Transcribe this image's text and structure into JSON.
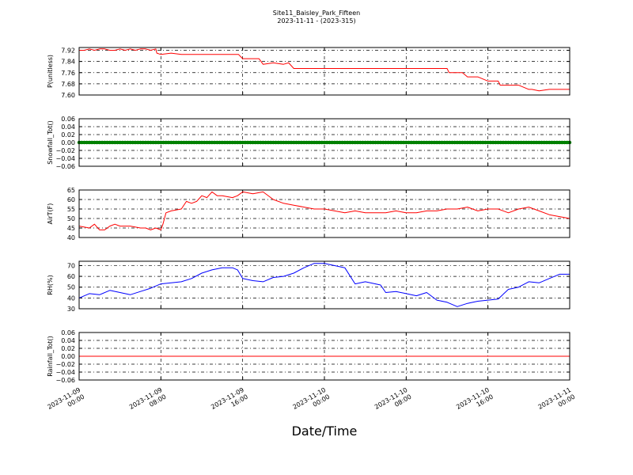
{
  "chart_data": {
    "type": "line",
    "title": "Site11_Baisley_Park_Fifteen",
    "subtitle": "2023-11-11 - (2023-315)",
    "xlabel": "Date/Time",
    "x_range": [
      "2023-11-09 00:00",
      "2023-11-11 00:00"
    ],
    "x_ticks": [
      {
        "l1": "2023-11-09",
        "l2": "00:00"
      },
      {
        "l1": "2023-11-09",
        "l2": "08:00"
      },
      {
        "l1": "2023-11-09",
        "l2": "16:00"
      },
      {
        "l1": "2023-11-10",
        "l2": "00:00"
      },
      {
        "l1": "2023-11-10",
        "l2": "08:00"
      },
      {
        "l1": "2023-11-10",
        "l2": "16:00"
      },
      {
        "l1": "2023-11-11",
        "l2": "00:00"
      }
    ],
    "grid": true,
    "panels": [
      {
        "ylabel": "P(unitless)",
        "ylim": [
          7.6,
          7.94
        ],
        "yticks": [
          "7.60",
          "7.68",
          "7.76",
          "7.84",
          "7.92"
        ],
        "ytick_values": [
          7.6,
          7.68,
          7.76,
          7.84,
          7.92
        ],
        "color": "#ff0000",
        "style": "line",
        "x_hours": [
          0,
          0.5,
          1,
          1.5,
          2,
          2.5,
          3,
          3.5,
          4,
          4.5,
          5,
          5.5,
          6,
          6.5,
          7,
          7.5,
          7.6,
          8,
          9,
          10,
          11,
          12,
          13,
          14,
          15,
          15.6,
          16,
          17,
          17.6,
          18,
          19,
          20,
          20.5,
          21,
          22,
          23,
          24,
          25,
          26,
          27,
          28,
          29,
          30,
          31,
          32,
          33,
          34,
          35,
          36,
          36.2,
          37,
          37.5,
          38,
          38.5,
          39,
          40,
          41,
          41.2,
          42,
          43,
          44,
          44.3,
          45,
          46,
          47,
          48
        ],
        "values": [
          7.92,
          7.92,
          7.93,
          7.92,
          7.93,
          7.93,
          7.92,
          7.92,
          7.93,
          7.92,
          7.93,
          7.92,
          7.93,
          7.93,
          7.92,
          7.93,
          7.9,
          7.89,
          7.9,
          7.89,
          7.89,
          7.89,
          7.89,
          7.89,
          7.89,
          7.89,
          7.86,
          7.86,
          7.86,
          7.82,
          7.83,
          7.82,
          7.83,
          7.79,
          7.79,
          7.79,
          7.79,
          7.79,
          7.79,
          7.79,
          7.79,
          7.79,
          7.79,
          7.79,
          7.79,
          7.79,
          7.79,
          7.79,
          7.79,
          7.76,
          7.76,
          7.76,
          7.73,
          7.73,
          7.73,
          7.7,
          7.7,
          7.67,
          7.67,
          7.67,
          7.64,
          7.64,
          7.63,
          7.64,
          7.64,
          7.64
        ]
      },
      {
        "ylabel": "Snowfall_Tot()",
        "ylim": [
          -0.06,
          0.06
        ],
        "yticks": [
          "−0.06",
          "−0.04",
          "−0.02",
          "0.00",
          "0.02",
          "0.04",
          "0.06"
        ],
        "ytick_values": [
          -0.06,
          -0.04,
          -0.02,
          0.0,
          0.02,
          0.04,
          0.06
        ],
        "color": "#008000",
        "style": "markers",
        "x_hours": [
          0,
          48
        ],
        "values": [
          0.0,
          0.0
        ]
      },
      {
        "ylabel": "AirT(F)",
        "ylim": [
          40,
          65
        ],
        "yticks": [
          "40",
          "45",
          "50",
          "55",
          "60",
          "65"
        ],
        "ytick_values": [
          40,
          45,
          50,
          55,
          60,
          65
        ],
        "color": "#ff0000",
        "style": "line",
        "x_hours": [
          0,
          1,
          1.5,
          2,
          2.5,
          3,
          3.5,
          4,
          5,
          6,
          6.5,
          7,
          7.5,
          8,
          8.2,
          8.5,
          9,
          10,
          10.5,
          11,
          11.5,
          12,
          12.5,
          13,
          13.5,
          14,
          15,
          15.5,
          16,
          17,
          18,
          19,
          20,
          21,
          22,
          23,
          24,
          25,
          26,
          27,
          28,
          29,
          30,
          31,
          32,
          33,
          34,
          35,
          36,
          37,
          38,
          39,
          40,
          41,
          42,
          43,
          44,
          45,
          46,
          47,
          48
        ],
        "values": [
          46,
          45,
          47,
          44,
          44,
          46,
          47,
          46,
          46,
          45,
          45,
          44,
          45,
          44,
          47,
          53,
          54,
          55,
          59,
          58,
          59,
          62,
          61,
          64,
          62,
          62,
          61,
          62,
          64,
          63,
          64,
          60,
          58,
          57,
          56,
          55,
          55,
          54,
          53,
          54,
          53,
          53,
          53,
          54,
          53,
          53,
          54,
          54,
          55,
          55,
          56,
          54,
          55,
          55,
          53,
          55,
          56,
          54,
          52,
          51,
          50
        ]
      },
      {
        "ylabel": "RH(%)",
        "ylim": [
          30,
          74
        ],
        "yticks": [
          "30",
          "40",
          "50",
          "60",
          "70"
        ],
        "ytick_values": [
          30,
          40,
          50,
          60,
          70
        ],
        "color": "#0000ff",
        "style": "line",
        "x_hours": [
          0,
          1,
          2,
          3,
          4,
          5,
          6,
          7,
          8,
          9,
          10,
          11,
          12,
          13,
          14,
          15,
          15.5,
          16,
          17,
          18,
          19,
          20,
          21,
          22,
          23,
          24,
          25,
          26,
          27,
          28,
          29,
          29.5,
          30,
          31,
          32,
          33,
          34,
          35,
          36,
          37,
          38,
          39,
          40,
          41,
          42,
          43,
          44,
          45,
          46,
          47,
          48
        ],
        "values": [
          40,
          44,
          43,
          47,
          45,
          43,
          46,
          49,
          53,
          54,
          55,
          58,
          63,
          66,
          68,
          68,
          66,
          58,
          56,
          55,
          59,
          60,
          63,
          68,
          72,
          72,
          70,
          68,
          53,
          55,
          53,
          52,
          45,
          46,
          44,
          42,
          45,
          38,
          36,
          32,
          35,
          37,
          38,
          39,
          48,
          50,
          55,
          54,
          58,
          62,
          62
        ]
      },
      {
        "ylabel": "Rainfall_Tot()",
        "ylim": [
          -0.06,
          0.06
        ],
        "yticks": [
          "−0.06",
          "−0.04",
          "−0.02",
          "0.00",
          "0.02",
          "0.04",
          "0.06"
        ],
        "ytick_values": [
          -0.06,
          -0.04,
          -0.02,
          0.0,
          0.02,
          0.04,
          0.06
        ],
        "color": "#ff0000",
        "style": "line",
        "x_hours": [
          0,
          48
        ],
        "values": [
          0.0,
          0.0
        ]
      }
    ]
  }
}
